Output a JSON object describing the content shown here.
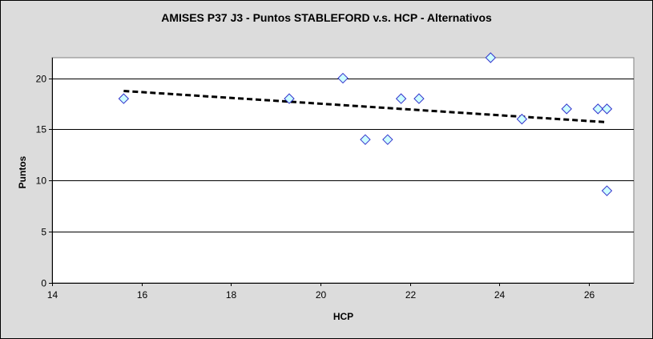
{
  "chart_data": {
    "type": "scatter",
    "title": "AMISES P37 J3 - Puntos STABLEFORD v.s. HCP - Alternativos",
    "xlabel": "HCP",
    "ylabel": "Puntos",
    "xlim": [
      14,
      27
    ],
    "ylim": [
      0,
      22
    ],
    "xticks": [
      14,
      16,
      18,
      20,
      22,
      24,
      26
    ],
    "yticks": [
      0,
      5,
      10,
      15,
      20
    ],
    "grid": "horizontal",
    "legend": "none",
    "marker": "diamond",
    "marker_fill": "#ccffff",
    "marker_edge": "#3333cc",
    "points": [
      {
        "x": 15.6,
        "y": 18
      },
      {
        "x": 19.3,
        "y": 18
      },
      {
        "x": 20.5,
        "y": 20
      },
      {
        "x": 21.0,
        "y": 14
      },
      {
        "x": 21.5,
        "y": 14
      },
      {
        "x": 21.8,
        "y": 18
      },
      {
        "x": 22.2,
        "y": 18
      },
      {
        "x": 23.8,
        "y": 22
      },
      {
        "x": 24.5,
        "y": 16
      },
      {
        "x": 25.5,
        "y": 17
      },
      {
        "x": 26.2,
        "y": 17
      },
      {
        "x": 26.4,
        "y": 17
      },
      {
        "x": 26.4,
        "y": 9
      }
    ],
    "trendline": {
      "type": "linear",
      "style": "dashed",
      "color": "#000000",
      "from": {
        "x": 15.6,
        "y": 18.75
      },
      "to": {
        "x": 26.4,
        "y": 15.7
      }
    }
  }
}
